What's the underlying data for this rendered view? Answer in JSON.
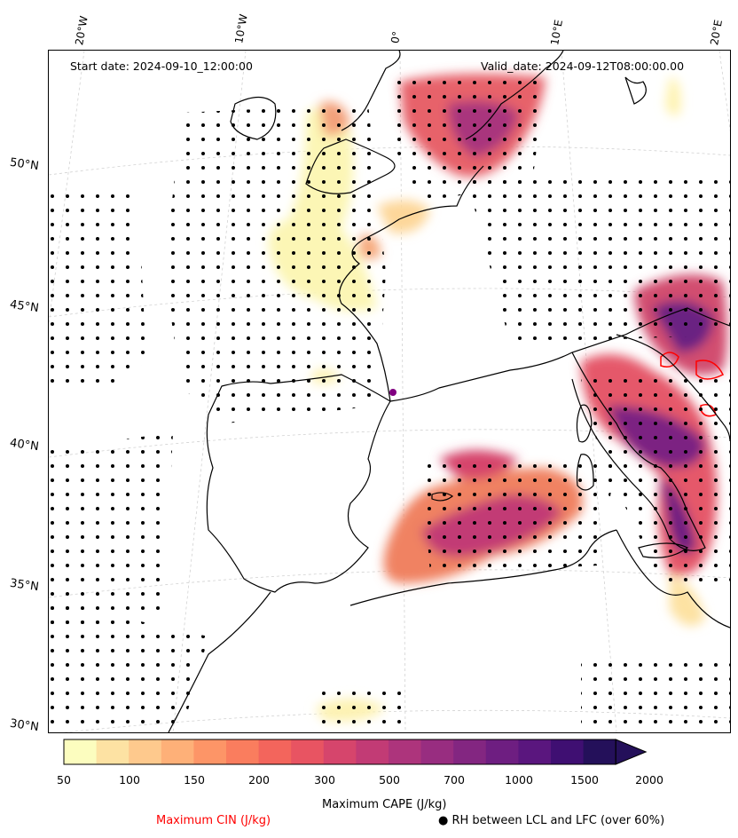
{
  "header": {
    "start_date": "Start date: 2024-09-10_12:00:00",
    "valid_date": "Valid_date: 2024-09-12T08:00:00.00"
  },
  "graticule": {
    "lon_labels": [
      "20°W",
      "10°W",
      "0°",
      "10°E",
      "20°E"
    ],
    "lat_labels": [
      "50°N",
      "45°N",
      "40°N",
      "35°N",
      "30°N"
    ]
  },
  "colorbar": {
    "ticks": [
      "50",
      "100",
      "150",
      "200",
      "300",
      "500",
      "700",
      "1000",
      "1500",
      "2000"
    ],
    "label": "Maximum CAPE (J/kg)",
    "colors": [
      "#fcfdbf",
      "#fde2a3",
      "#fec98d",
      "#feb078",
      "#fd9567",
      "#fa7d5e",
      "#f3655c",
      "#e85462",
      "#d6456c",
      "#c23b75",
      "#ad347c",
      "#982d80",
      "#832681",
      "#6e1e81",
      "#5a167e",
      "#3f0f72",
      "#24105a"
    ]
  },
  "legend": {
    "cin_label": "Maximum CIN (J/kg)",
    "cin_color": "#ff0000",
    "rh_label": "RH between LCL and LFC (over 60%)"
  }
}
